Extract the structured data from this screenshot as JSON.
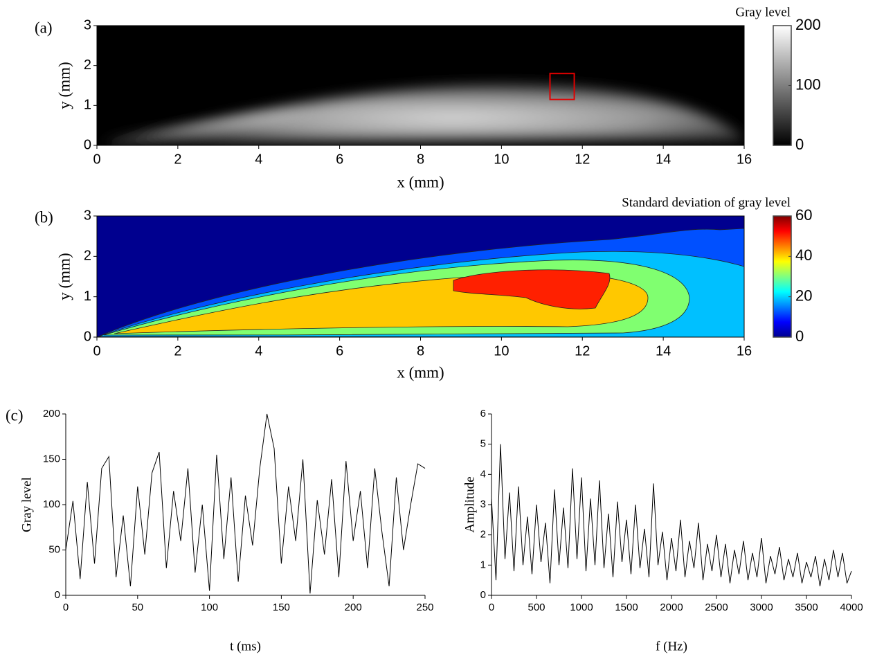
{
  "chart_data": [
    {
      "type": "heatmap",
      "panel": "(a)",
      "xlabel": "x (mm)",
      "ylabel": "y (mm)",
      "xlim": [
        0,
        16
      ],
      "xticks": [
        0,
        2,
        4,
        6,
        8,
        10,
        12,
        14,
        16
      ],
      "ylim": [
        0,
        3
      ],
      "yticks": [
        0,
        1,
        2,
        3
      ],
      "colorbar": {
        "title": "Gray level",
        "lim": [
          0,
          200
        ],
        "ticks": [
          0,
          100,
          200
        ],
        "colormap": "gray"
      },
      "roi": {
        "color": "#e00000",
        "x": [
          11.2,
          11.8
        ],
        "y": [
          1.15,
          1.8
        ]
      }
    },
    {
      "type": "contour",
      "panel": "(b)",
      "xlabel": "x (mm)",
      "ylabel": "y (mm)",
      "xlim": [
        0,
        16
      ],
      "xticks": [
        0,
        2,
        4,
        6,
        8,
        10,
        12,
        14,
        16
      ],
      "ylim": [
        0,
        3
      ],
      "yticks": [
        0,
        1,
        2,
        3
      ],
      "colorbar": {
        "title": "Standard deviation of gray level",
        "lim": [
          0,
          60
        ],
        "ticks": [
          0,
          20,
          40,
          60
        ],
        "colormap": "jet"
      }
    },
    {
      "type": "line",
      "panel": "(c)",
      "xlabel": "t (ms)",
      "ylabel": "Gray level",
      "color": "#000000",
      "xlim": [
        0,
        250
      ],
      "xticks": [
        0,
        50,
        100,
        150,
        200,
        250
      ],
      "ylim": [
        0,
        200
      ],
      "yticks": [
        0,
        50,
        100,
        150,
        200
      ],
      "x": [
        0,
        5,
        10,
        15,
        20,
        25,
        30,
        35,
        40,
        45,
        50,
        55,
        60,
        65,
        70,
        75,
        80,
        85,
        90,
        95,
        100,
        105,
        110,
        115,
        120,
        125,
        130,
        135,
        140,
        145,
        150,
        155,
        160,
        165,
        170,
        175,
        180,
        185,
        190,
        195,
        200,
        205,
        210,
        215,
        220,
        225,
        230,
        235,
        240,
        245,
        250
      ],
      "values": [
        50,
        104,
        18,
        125,
        35,
        140,
        153,
        20,
        88,
        10,
        120,
        45,
        135,
        158,
        30,
        115,
        60,
        140,
        25,
        100,
        5,
        155,
        40,
        130,
        15,
        110,
        55,
        140,
        200,
        162,
        35,
        120,
        60,
        150,
        2,
        105,
        45,
        128,
        20,
        148,
        60,
        115,
        30,
        140,
        70,
        10,
        130,
        50,
        100,
        145,
        140
      ]
    },
    {
      "type": "line",
      "xlabel": "f (Hz)",
      "ylabel": "Amplitude",
      "color": "#000000",
      "xlim": [
        0,
        4000
      ],
      "xticks": [
        0,
        500,
        1000,
        1500,
        2000,
        2500,
        3000,
        3500,
        4000
      ],
      "ylim": [
        0,
        6
      ],
      "yticks": [
        0,
        1,
        2,
        3,
        4,
        5,
        6
      ],
      "x": [
        0,
        50,
        100,
        150,
        200,
        250,
        300,
        350,
        400,
        450,
        500,
        550,
        600,
        650,
        700,
        750,
        800,
        850,
        900,
        950,
        1000,
        1050,
        1100,
        1150,
        1200,
        1250,
        1300,
        1350,
        1400,
        1450,
        1500,
        1550,
        1600,
        1650,
        1700,
        1750,
        1800,
        1850,
        1900,
        1950,
        2000,
        2050,
        2100,
        2150,
        2200,
        2250,
        2300,
        2350,
        2400,
        2450,
        2500,
        2550,
        2600,
        2650,
        2700,
        2750,
        2800,
        2850,
        2900,
        2950,
        3000,
        3050,
        3100,
        3150,
        3200,
        3250,
        3300,
        3350,
        3400,
        3450,
        3500,
        3550,
        3600,
        3650,
        3700,
        3750,
        3800,
        3850,
        3900,
        3950,
        4000
      ],
      "values": [
        3.2,
        0.5,
        5.0,
        1.2,
        3.4,
        0.8,
        3.6,
        1.0,
        2.6,
        0.7,
        3.0,
        1.1,
        2.4,
        0.4,
        3.5,
        1.0,
        2.9,
        0.9,
        4.2,
        1.2,
        3.9,
        0.8,
        3.2,
        1.0,
        3.8,
        0.9,
        2.7,
        0.6,
        3.1,
        1.1,
        2.5,
        0.7,
        3.0,
        0.9,
        2.2,
        0.6,
        3.7,
        1.0,
        2.1,
        0.5,
        1.9,
        0.8,
        2.5,
        0.6,
        1.8,
        0.9,
        2.4,
        0.5,
        1.7,
        0.8,
        2.0,
        0.6,
        1.7,
        0.4,
        1.5,
        0.7,
        1.8,
        0.5,
        1.4,
        0.6,
        1.9,
        0.4,
        1.3,
        0.7,
        1.6,
        0.5,
        1.2,
        0.6,
        1.4,
        0.4,
        1.1,
        0.6,
        1.3,
        0.3,
        1.2,
        0.5,
        1.5,
        0.6,
        1.4,
        0.4,
        0.8
      ]
    }
  ]
}
